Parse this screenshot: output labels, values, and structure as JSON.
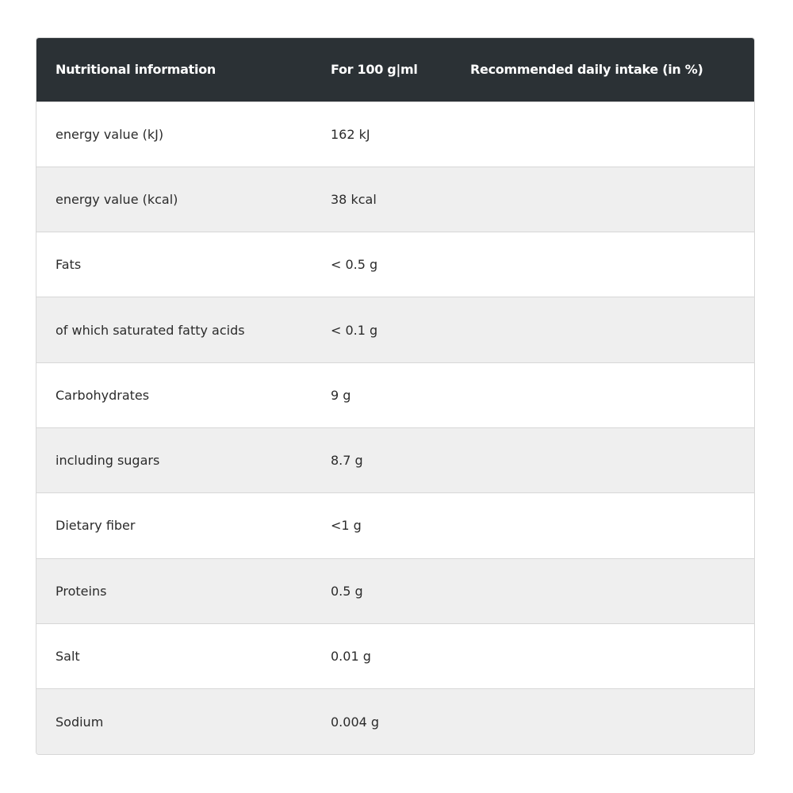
{
  "table": {
    "headers": [
      "Nutritional information",
      "For 100 g|ml",
      "Recommended daily intake (in %)"
    ],
    "rows": [
      {
        "name": "energy value (kJ)",
        "value": "162 kJ",
        "rdi": ""
      },
      {
        "name": "energy value (kcal)",
        "value": "38 kcal",
        "rdi": ""
      },
      {
        "name": "Fats",
        "value": "< 0.5 g",
        "rdi": ""
      },
      {
        "name": "of which saturated fatty acids",
        "value": "< 0.1 g",
        "rdi": ""
      },
      {
        "name": "Carbohydrates",
        "value": "9 g",
        "rdi": ""
      },
      {
        "name": "including sugars",
        "value": "8.7 g",
        "rdi": ""
      },
      {
        "name": "Dietary fiber",
        "value": "<1 g",
        "rdi": ""
      },
      {
        "name": "Proteins",
        "value": "0.5 g",
        "rdi": ""
      },
      {
        "name": "Salt",
        "value": "0.01 g",
        "rdi": ""
      },
      {
        "name": "Sodium",
        "value": "0.004 g",
        "rdi": ""
      }
    ]
  },
  "colors": {
    "header_bg": "#2b3135",
    "header_text": "#ffffff",
    "row_alt_bg": "#efefef",
    "border": "#d7d7d7"
  }
}
